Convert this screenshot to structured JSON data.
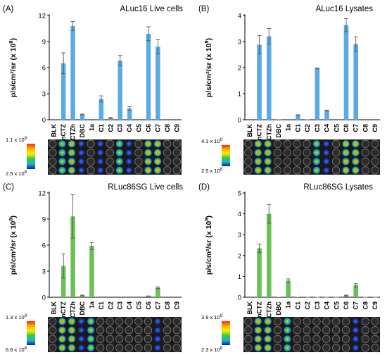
{
  "panels": [
    {
      "id": "A",
      "label": "(A)",
      "exp_top": "1.1",
      "exp_top_sup": "9",
      "exp_bot": "2.5",
      "exp_bot_sup": "8",
      "y_label": "p/s/cm²/sr (x 10",
      "y_exp": "8",
      "y_close": ")"
    },
    {
      "id": "B",
      "label": "(B)",
      "exp_top": "4.1",
      "exp_top_sup": "9",
      "exp_bot": "2.5",
      "exp_bot_sup": "8",
      "y_label": "p/s/cm²/sr (x 10",
      "y_exp": "9",
      "y_close": ")"
    },
    {
      "id": "C",
      "label": "(C)",
      "exp_top": "1.3",
      "exp_top_sup": "9",
      "exp_bot": "6.6",
      "exp_bot_sup": "8",
      "y_label": "p/s/cm²/sr (x 10",
      "y_exp": "8",
      "y_close": ")"
    },
    {
      "id": "D",
      "label": "(D)",
      "exp_top": "3.9",
      "exp_top_sup": "9",
      "exp_bot": "2.3",
      "exp_bot_sup": "8",
      "y_label": "p/s/cm²/sr (x 10",
      "y_exp": "9",
      "y_close": ")"
    }
  ],
  "colors": {
    "blue": "#5aaae6",
    "green": "#6abf55",
    "error": "#555555"
  },
  "chart_data": [
    {
      "type": "bar",
      "title": "ALuc16 Live cells",
      "categories": [
        "BLK",
        "nCTZ",
        "CTZh",
        "DBC",
        "1a",
        "C1",
        "C2",
        "C3",
        "C4",
        "C5",
        "C6",
        "C7",
        "C8",
        "C9"
      ],
      "values": [
        0,
        6.5,
        10.8,
        0.6,
        0,
        2.4,
        0.2,
        6.8,
        1.3,
        0,
        9.9,
        8.4,
        0,
        0
      ],
      "errors": [
        0,
        1.2,
        0.5,
        0.05,
        0,
        0.35,
        0.05,
        0.6,
        0.2,
        0,
        0.8,
        0.8,
        0,
        0
      ],
      "ylim": [
        0,
        12
      ],
      "yticks": [
        0,
        3,
        6,
        9,
        12
      ],
      "ylabel": "p/s/cm²/sr (x 10⁸)",
      "color": "blue"
    },
    {
      "type": "bar",
      "title": "ALuc16 Lysates",
      "categories": [
        "BLK",
        "nCTZ",
        "CTZh",
        "DBC",
        "1a",
        "C1",
        "C2",
        "C3",
        "C4",
        "C5",
        "C6",
        "C7",
        "C8",
        "C9"
      ],
      "values": [
        0,
        2.88,
        3.2,
        0.02,
        0,
        0.17,
        0.02,
        1.97,
        0.35,
        0,
        3.63,
        2.9,
        0,
        0
      ],
      "errors": [
        0,
        0.35,
        0.3,
        0,
        0,
        0.02,
        0,
        0.02,
        0.02,
        0,
        0.25,
        0.28,
        0,
        0
      ],
      "ylim": [
        0,
        4
      ],
      "yticks": [
        0,
        1,
        2,
        3,
        4
      ],
      "ylabel": "p/s/cm²/sr (x 10⁹)",
      "color": "blue"
    },
    {
      "type": "bar",
      "title": "RLuc86SG Live cells",
      "categories": [
        "BLK",
        "nCTZ",
        "CTZh",
        "DBC",
        "1a",
        "C1",
        "C2",
        "C3",
        "C4",
        "C5",
        "C6",
        "C7",
        "C8",
        "C9"
      ],
      "values": [
        0,
        3.6,
        9.3,
        0.2,
        5.9,
        0,
        0,
        0,
        0,
        0,
        0.1,
        1.1,
        0,
        0
      ],
      "errors": [
        0,
        1.4,
        2.5,
        0.05,
        0.4,
        0,
        0,
        0,
        0,
        0,
        0.05,
        0.1,
        0,
        0
      ],
      "ylim": [
        0,
        12
      ],
      "yticks": [
        0,
        3,
        6,
        9,
        12
      ],
      "ylabel": "p/s/cm²/sr (x 10⁸)",
      "color": "green"
    },
    {
      "type": "bar",
      "title": "RLuc86SG Lysates",
      "categories": [
        "BLK",
        "nCTZ",
        "CTZh",
        "DBC",
        "1a",
        "C1",
        "C2",
        "C3",
        "C4",
        "C5",
        "C6",
        "C7",
        "C8",
        "C9"
      ],
      "values": [
        0,
        2.35,
        4.0,
        0.02,
        0.8,
        0.02,
        0.01,
        0.01,
        0.01,
        0.01,
        0.08,
        0.57,
        0.01,
        0.01
      ],
      "errors": [
        0,
        0.2,
        0.45,
        0,
        0.08,
        0,
        0,
        0,
        0,
        0,
        0.02,
        0.08,
        0,
        0
      ],
      "ylim": [
        0,
        5
      ],
      "yticks": [
        0,
        1,
        2,
        3,
        4,
        5
      ],
      "ylabel": "p/s/cm²/sr (x 10⁹)",
      "color": "green"
    }
  ],
  "plates": [
    {
      "panel": "A",
      "wells": {
        "1": 2,
        "2": 3,
        "3": 1,
        "5": 1,
        "7": 2,
        "8": 1,
        "10": 3,
        "11": 3
      }
    },
    {
      "panel": "B",
      "wells": {
        "1": 3,
        "2": 3,
        "7": 2,
        "8": 1,
        "10": 3,
        "11": 3
      }
    },
    {
      "panel": "C",
      "wells": {
        "1": 3,
        "2": 3,
        "3": 1,
        "4": 2,
        "11": 1
      }
    },
    {
      "panel": "D",
      "wells": {
        "1": 3,
        "2": 3,
        "4": 2,
        "11": 1
      }
    }
  ]
}
